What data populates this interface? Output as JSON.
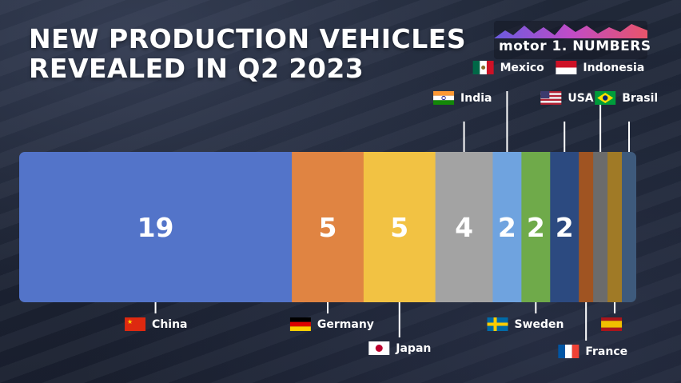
{
  "title": "NEW PRODUCTION VEHICLES\nREVEALED IN Q2 2023",
  "logo": {
    "text": "motor 1. NUMBERS"
  },
  "chart_data": {
    "type": "bar",
    "stacked": "horizontal-100%",
    "title": "NEW PRODUCTION VEHICLES REVEALED IN Q2 2023",
    "categories": [
      "China",
      "Germany",
      "Japan",
      "India",
      "Mexico",
      "Sweden",
      "USA",
      "France",
      "Indonesia",
      "Spain",
      "Brasil"
    ],
    "values": [
      19,
      5,
      5,
      4,
      2,
      2,
      2,
      1,
      1,
      1,
      1
    ],
    "value_labels": [
      "19",
      "5",
      "5",
      "4",
      "2",
      "2",
      "2",
      "",
      "",
      "",
      ""
    ],
    "country_labels": [
      "China",
      "Germany",
      "Japan",
      "India",
      "Mexico",
      "Sweden",
      "USA",
      "France",
      "Indonesia",
      "",
      "Brasil"
    ],
    "colors": [
      "#5374c9",
      "#e08442",
      "#f2c243",
      "#a3a3a3",
      "#6fa3df",
      "#6faa4a",
      "#2c4a80",
      "#a05422",
      "#6b6b6b",
      "#a07a26",
      "#3e5a7c"
    ],
    "label_side": [
      "bottom",
      "bottom",
      "bottom",
      "top",
      "top",
      "bottom",
      "top",
      "bottom",
      "top",
      "bottom",
      "top"
    ],
    "flags": [
      "cn",
      "de",
      "jp",
      "in",
      "mx",
      "se",
      "us",
      "fr",
      "id",
      "es",
      "br"
    ]
  }
}
